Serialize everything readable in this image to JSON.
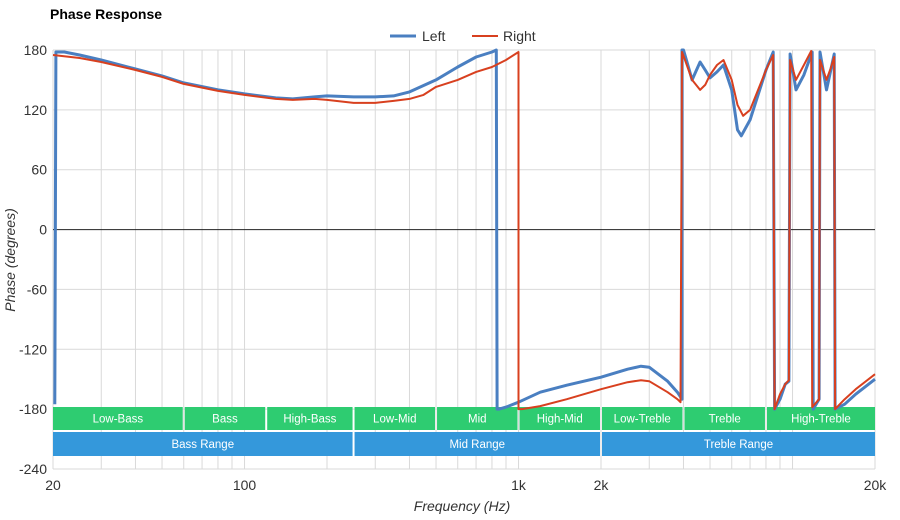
{
  "chart_data": {
    "type": "line",
    "title": "Phase Response",
    "xlabel": "Frequency (Hz)",
    "ylabel": "Phase (degrees)",
    "x_scale": "log",
    "xlim": [
      20,
      20000
    ],
    "ylim": [
      -240,
      180
    ],
    "x_ticks": [
      {
        "value": 20,
        "label": "20"
      },
      {
        "value": 100,
        "label": "100"
      },
      {
        "value": 1000,
        "label": "1k"
      },
      {
        "value": 2000,
        "label": "2k"
      },
      {
        "value": 20000,
        "label": "20k"
      }
    ],
    "y_ticks": [
      {
        "value": 180,
        "label": "180"
      },
      {
        "value": 120,
        "label": "120"
      },
      {
        "value": 60,
        "label": "60"
      },
      {
        "value": 0,
        "label": "0"
      },
      {
        "value": -60,
        "label": "-60"
      },
      {
        "value": -120,
        "label": "-120"
      },
      {
        "value": -180,
        "label": "-180"
      },
      {
        "value": -240,
        "label": "-240"
      }
    ],
    "grid": true,
    "legend_position": "top-center",
    "series": [
      {
        "name": "Left",
        "color": "#4a7fc1",
        "points": [
          [
            20.3,
            -175
          ],
          [
            20.5,
            178
          ],
          [
            22,
            178
          ],
          [
            25,
            175
          ],
          [
            30,
            170
          ],
          [
            40,
            161
          ],
          [
            50,
            154
          ],
          [
            60,
            147
          ],
          [
            80,
            140
          ],
          [
            100,
            136
          ],
          [
            130,
            132
          ],
          [
            150,
            131
          ],
          [
            180,
            133
          ],
          [
            200,
            134
          ],
          [
            250,
            133
          ],
          [
            300,
            133
          ],
          [
            350,
            134
          ],
          [
            400,
            138
          ],
          [
            500,
            150
          ],
          [
            600,
            163
          ],
          [
            700,
            173
          ],
          [
            800,
            178
          ],
          [
            830,
            180
          ],
          [
            835,
            -180
          ],
          [
            850,
            -180
          ],
          [
            850,
            -180
          ],
          [
            900,
            -178
          ],
          [
            1000,
            -173
          ],
          [
            1200,
            -163
          ],
          [
            1500,
            -156
          ],
          [
            2000,
            -148
          ],
          [
            2500,
            -140
          ],
          [
            2800,
            -137
          ],
          [
            3000,
            -138
          ],
          [
            3500,
            -152
          ],
          [
            3800,
            -163
          ],
          [
            3950,
            -170
          ],
          [
            3950,
            180
          ],
          [
            4000,
            180
          ],
          [
            4100,
            170
          ],
          [
            4300,
            150
          ],
          [
            4600,
            168
          ],
          [
            4800,
            160
          ],
          [
            5000,
            152
          ],
          [
            5300,
            158
          ],
          [
            5600,
            165
          ],
          [
            6000,
            140
          ],
          [
            6300,
            100
          ],
          [
            6500,
            94
          ],
          [
            7000,
            110
          ],
          [
            8000,
            160
          ],
          [
            8500,
            178
          ],
          [
            8600,
            -180
          ],
          [
            9000,
            -170
          ],
          [
            9400,
            -155
          ],
          [
            9700,
            -152
          ],
          [
            9800,
            176
          ],
          [
            10300,
            140
          ],
          [
            11000,
            155
          ],
          [
            11800,
            178
          ],
          [
            11900,
            -180
          ],
          [
            12500,
            -170
          ],
          [
            12600,
            178
          ],
          [
            13300,
            140
          ],
          [
            13800,
            160
          ],
          [
            14200,
            176
          ],
          [
            14300,
            -180
          ],
          [
            15500,
            -175
          ],
          [
            17000,
            -165
          ],
          [
            20000,
            -150
          ]
        ]
      },
      {
        "name": "Right",
        "color": "#d8401f",
        "points": [
          [
            20,
            175
          ],
          [
            25,
            172
          ],
          [
            30,
            168
          ],
          [
            40,
            160
          ],
          [
            50,
            153
          ],
          [
            60,
            146
          ],
          [
            80,
            139
          ],
          [
            100,
            135
          ],
          [
            130,
            131
          ],
          [
            150,
            130
          ],
          [
            180,
            131
          ],
          [
            200,
            130
          ],
          [
            250,
            127
          ],
          [
            300,
            127
          ],
          [
            350,
            129
          ],
          [
            400,
            131
          ],
          [
            450,
            135
          ],
          [
            500,
            143
          ],
          [
            600,
            150
          ],
          [
            700,
            158
          ],
          [
            800,
            163
          ],
          [
            900,
            170
          ],
          [
            1000,
            178
          ],
          [
            1000,
            -180
          ],
          [
            1030,
            -180
          ],
          [
            1030,
            -180
          ],
          [
            1200,
            -177
          ],
          [
            1500,
            -170
          ],
          [
            2000,
            -160
          ],
          [
            2500,
            -153
          ],
          [
            2800,
            -151
          ],
          [
            3000,
            -152
          ],
          [
            3500,
            -163
          ],
          [
            3800,
            -170
          ],
          [
            3900,
            -173
          ],
          [
            3950,
            178
          ],
          [
            4050,
            170
          ],
          [
            4300,
            150
          ],
          [
            4600,
            140
          ],
          [
            4800,
            145
          ],
          [
            5000,
            155
          ],
          [
            5300,
            165
          ],
          [
            5600,
            170
          ],
          [
            6000,
            150
          ],
          [
            6300,
            125
          ],
          [
            6600,
            114
          ],
          [
            7000,
            120
          ],
          [
            8000,
            160
          ],
          [
            8500,
            175
          ],
          [
            8600,
            -180
          ],
          [
            9000,
            -165
          ],
          [
            9400,
            -155
          ],
          [
            9700,
            -151
          ],
          [
            9800,
            170
          ],
          [
            10300,
            150
          ],
          [
            11000,
            165
          ],
          [
            11700,
            179
          ],
          [
            11800,
            -178
          ],
          [
            12500,
            -170
          ],
          [
            12600,
            170
          ],
          [
            13300,
            150
          ],
          [
            13800,
            162
          ],
          [
            14200,
            173
          ],
          [
            14300,
            -180
          ],
          [
            15500,
            -170
          ],
          [
            17000,
            -160
          ],
          [
            20000,
            -145
          ]
        ]
      }
    ],
    "bands": [
      {
        "label": "Low-Bass",
        "from": 20,
        "to": 60,
        "row": 1,
        "color": "#2ecc71"
      },
      {
        "label": "Bass",
        "from": 60,
        "to": 120,
        "row": 1,
        "color": "#2ecc71"
      },
      {
        "label": "High-Bass",
        "from": 120,
        "to": 250,
        "row": 1,
        "color": "#2ecc71"
      },
      {
        "label": "Low-Mid",
        "from": 250,
        "to": 500,
        "row": 1,
        "color": "#2ecc71"
      },
      {
        "label": "Mid",
        "from": 500,
        "to": 1000,
        "row": 1,
        "color": "#2ecc71"
      },
      {
        "label": "High-Mid",
        "from": 1000,
        "to": 2000,
        "row": 1,
        "color": "#2ecc71"
      },
      {
        "label": "Low-Treble",
        "from": 2000,
        "to": 4000,
        "row": 1,
        "color": "#2ecc71"
      },
      {
        "label": "Treble",
        "from": 4000,
        "to": 8000,
        "row": 1,
        "color": "#2ecc71"
      },
      {
        "label": "High-Treble",
        "from": 8000,
        "to": 20000,
        "row": 1,
        "color": "#2ecc71"
      },
      {
        "label": "Bass Range",
        "from": 20,
        "to": 250,
        "row": 2,
        "color": "#3498db"
      },
      {
        "label": "Mid Range",
        "from": 250,
        "to": 2000,
        "row": 2,
        "color": "#3498db"
      },
      {
        "label": "Treble Range",
        "from": 2000,
        "to": 20000,
        "row": 2,
        "color": "#3498db"
      }
    ]
  }
}
